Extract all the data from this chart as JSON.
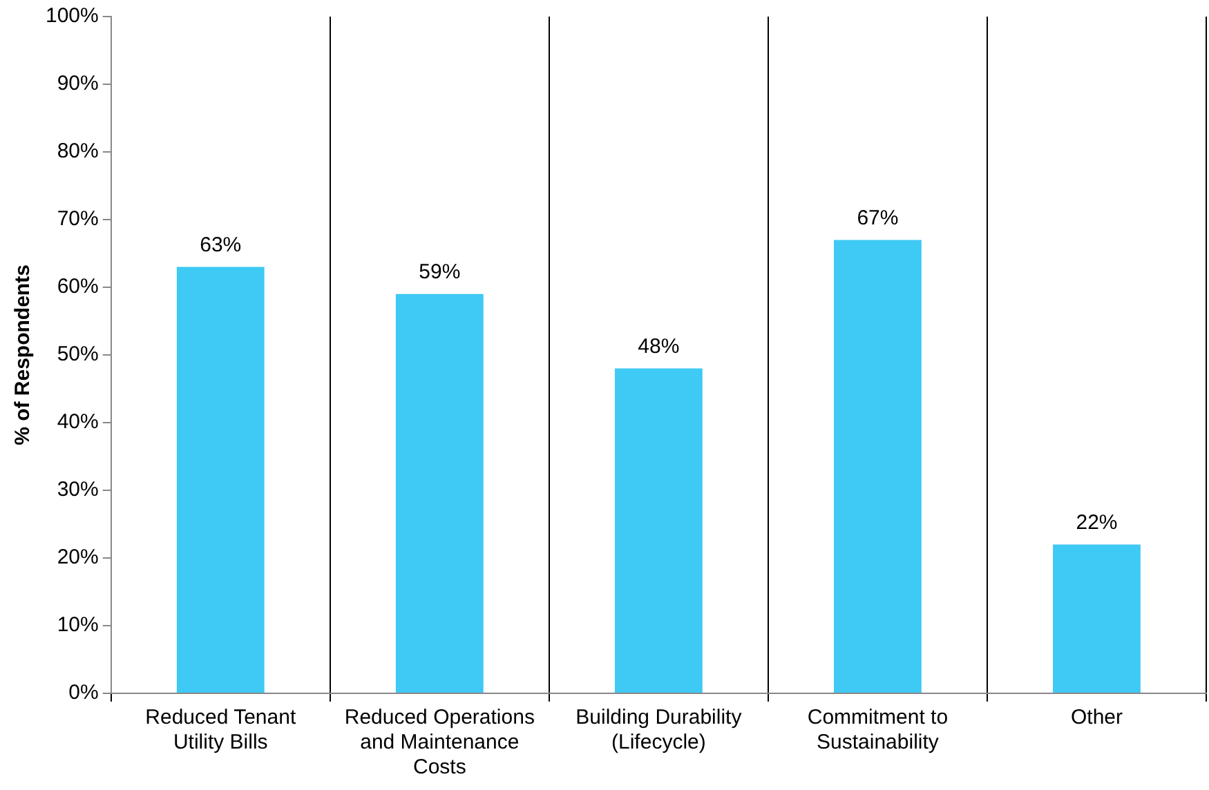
{
  "chart_data": {
    "type": "bar",
    "ylabel": "% of Respondents",
    "categories": [
      "Reduced Tenant Utility Bills",
      "Reduced Operations and Maintenance Costs",
      "Building Durability (Lifecycle)",
      "Commitment to Sustainability",
      "Other"
    ],
    "values": [
      63,
      59,
      48,
      67,
      22
    ],
    "value_labels": [
      "63%",
      "59%",
      "48%",
      "67%",
      "22%"
    ],
    "color": "#3fc9f5",
    "ylim": [
      0,
      100
    ],
    "yticks": [
      {
        "value": 0,
        "label": "0%"
      },
      {
        "value": 10,
        "label": "10%"
      },
      {
        "value": 20,
        "label": "20%"
      },
      {
        "value": 30,
        "label": "30%"
      },
      {
        "value": 40,
        "label": "40%"
      },
      {
        "value": 50,
        "label": "50%"
      },
      {
        "value": 60,
        "label": "60%"
      },
      {
        "value": 70,
        "label": "70%"
      },
      {
        "value": 80,
        "label": "80%"
      },
      {
        "value": 90,
        "label": "90%"
      },
      {
        "value": 100,
        "label": "100%"
      }
    ],
    "grid": "x",
    "legend": false
  }
}
